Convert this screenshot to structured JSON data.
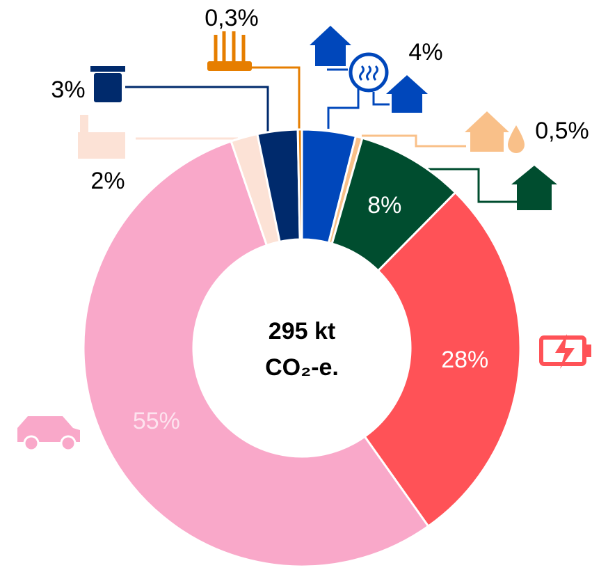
{
  "chart_data": {
    "type": "donut",
    "center_text": [
      "295 kt",
      "CO₂-e."
    ],
    "values": [
      4,
      0.5,
      8,
      28,
      55,
      2,
      3,
      0.3
    ],
    "value_labels": [
      "4%",
      "0,5%",
      "8%",
      "28%",
      "55%",
      "2%",
      "3%",
      "0,3%"
    ],
    "colors": [
      "#0047BB",
      "#F9C089",
      "#004D2F",
      "#FF5257",
      "#F9A8C9",
      "#FCE2D6",
      "#002A6C",
      "#E67E00"
    ]
  }
}
